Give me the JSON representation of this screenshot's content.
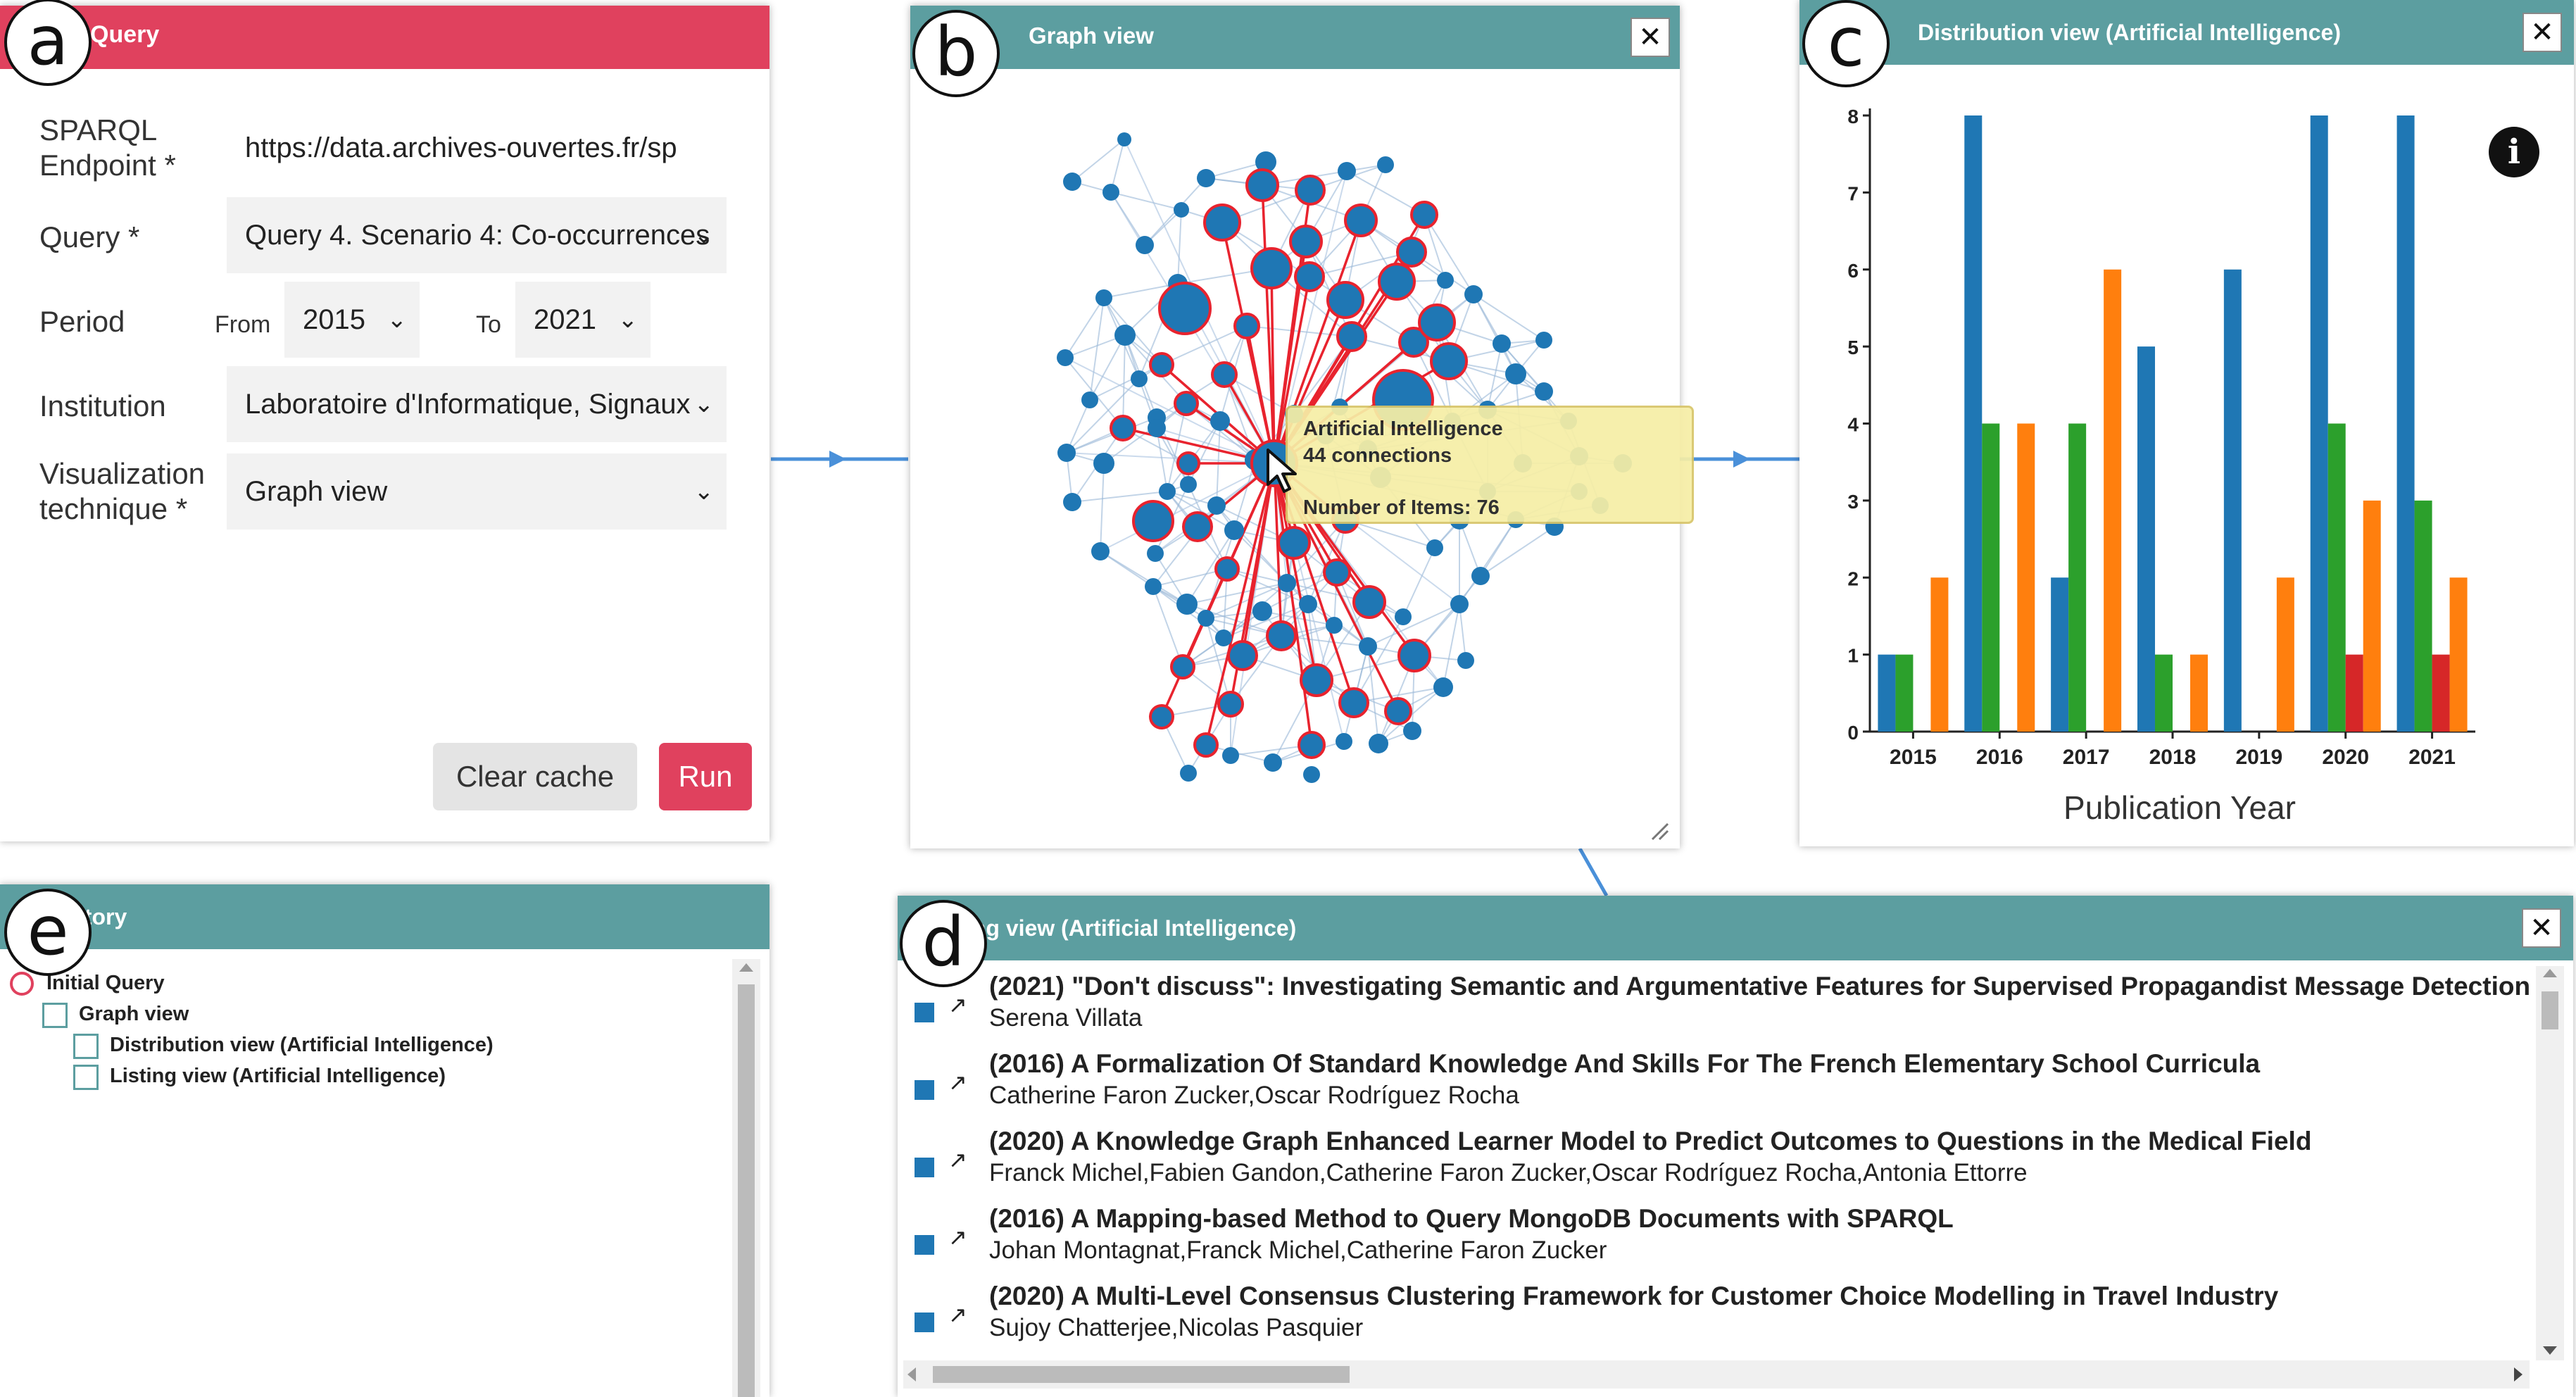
{
  "query_panel": {
    "title": "Query",
    "endpoint_label": "SPARQL Endpoint *",
    "endpoint_value": "https://data.archives-ouvertes.fr/sp",
    "query_label": "Query *",
    "query_value": "Query 4. Scenario 4: Co-occurrences",
    "period_label": "Period",
    "from_label": "From",
    "from_value": "2015",
    "to_label": "To",
    "to_value": "2021",
    "institution_label": "Institution",
    "institution_value": "Laboratoire d'Informatique, Signaux",
    "viz_label": "Visualization technique *",
    "viz_value": "Graph view",
    "clear_button": "Clear cache",
    "run_button": "Run"
  },
  "graph_panel": {
    "title": "Graph view",
    "close": "✕",
    "tooltip": {
      "name": "Artificial Intelligence",
      "connections": "44 connections",
      "items": "Number of Items: 76"
    }
  },
  "distribution_panel": {
    "title": "Distribution view (Artificial Intelligence)",
    "close": "✕",
    "info_icon": "i"
  },
  "listing_panel": {
    "title": "Listing view (Artificial Intelligence)",
    "close": "✕",
    "items": [
      {
        "title": "(2021) \"Don't discuss\": Investigating Semantic and Argumentative Features for Supervised Propagandist Message Detection",
        "authors": "Serena Villata"
      },
      {
        "title": "(2016) A Formalization Of Standard Knowledge And Skills For The French Elementary School Curricula",
        "authors": "Catherine Faron Zucker,Oscar Rodríguez Rocha"
      },
      {
        "title": "(2020) A Knowledge Graph Enhanced Learner Model to Predict Outcomes to Questions in the Medical Field",
        "authors": "Franck Michel,Fabien Gandon,Catherine Faron Zucker,Oscar Rodríguez Rocha,Antonia Ettorre"
      },
      {
        "title": "(2016) A Mapping-based Method to Query MongoDB Documents with SPARQL",
        "authors": "Johan Montagnat,Franck Michel,Catherine Faron Zucker"
      },
      {
        "title": "(2020) A Multi-Level Consensus Clustering Framework for Customer Choice Modelling in Travel Industry",
        "authors": "Sujoy Chatterjee,Nicolas Pasquier"
      }
    ]
  },
  "history_panel": {
    "title": "History",
    "items": [
      {
        "label": "Initial Query"
      },
      {
        "label": "Graph view"
      },
      {
        "label": "Distribution view (Artificial Intelligence)"
      },
      {
        "label": "Listing view (Artificial Intelligence)"
      }
    ]
  },
  "panel_letters": [
    "a",
    "b",
    "c",
    "d",
    "e"
  ],
  "colors": {
    "query_header": "#e0415e",
    "panel_header": "#5c9ea0",
    "run_button": "#e0415e",
    "node": "#1f77b4",
    "highlight": "#e8232e",
    "arrow": "#4a90d9"
  },
  "chart_data": {
    "type": "bar",
    "categories": [
      "2015",
      "2016",
      "2017",
      "2018",
      "2019",
      "2020",
      "2021"
    ],
    "series": [
      {
        "color": "#1f77b4",
        "values": [
          1,
          8,
          2,
          5,
          6,
          8,
          8
        ]
      },
      {
        "color": "#2ca02c",
        "values": [
          1,
          4,
          4,
          1,
          0,
          4,
          3
        ]
      },
      {
        "color": "#d62728",
        "values": [
          0,
          0,
          0,
          0,
          0,
          1,
          1
        ]
      },
      {
        "color": "#ff7f0e",
        "values": [
          2,
          4,
          6,
          1,
          2,
          3,
          2
        ]
      }
    ],
    "xlabel": "Publication Year",
    "ylabel": "",
    "ylim": [
      0,
      8
    ],
    "yticks": [
      "0",
      "1",
      "2",
      "3",
      "4",
      "5",
      "6",
      "7",
      "8"
    ],
    "grid": false
  }
}
